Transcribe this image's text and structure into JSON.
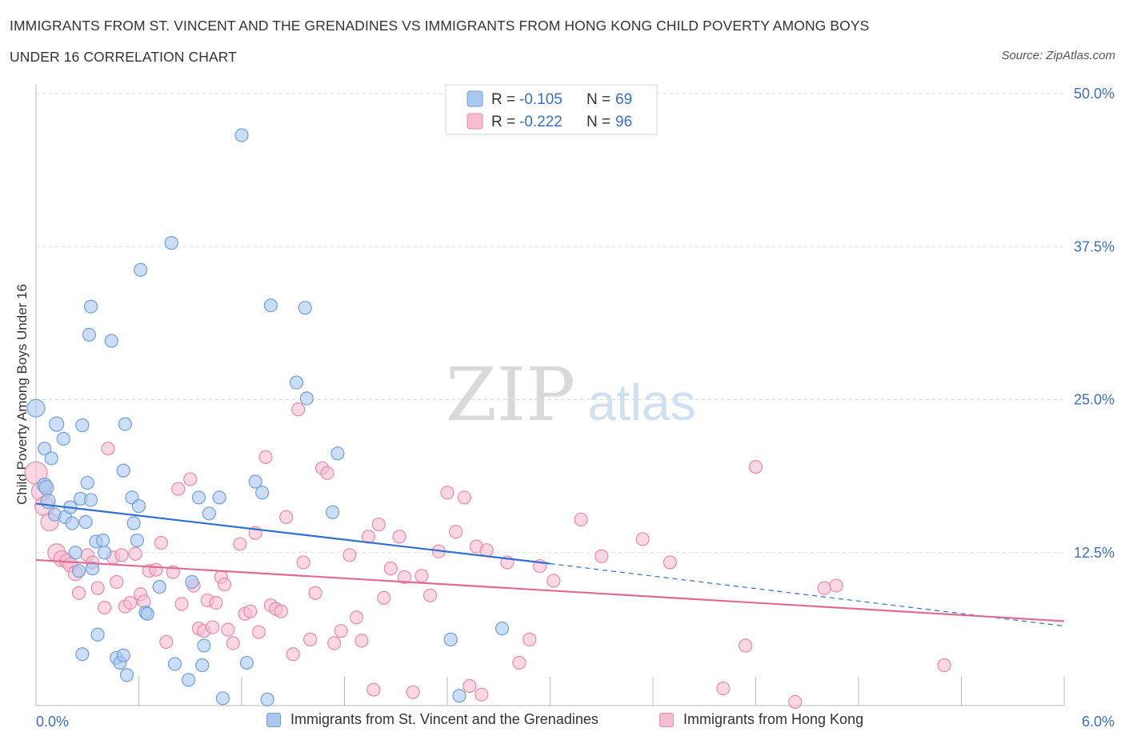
{
  "title_line1": "IMMIGRANTS FROM ST. VINCENT AND THE GRENADINES VS IMMIGRANTS FROM HONG KONG CHILD POVERTY AMONG BOYS",
  "title_line2": "UNDER 16 CORRELATION CHART",
  "source": "Source: ZipAtlas.com",
  "watermark": {
    "zip": "ZIP",
    "atlas": "atlas"
  },
  "colors": {
    "blue_fill": "#a9c8ef",
    "blue_stroke": "#6f9fdc",
    "blue_line": "#2e6fcf",
    "pink_fill": "#f6bcd0",
    "pink_stroke": "#e88aa9",
    "pink_line": "#e0699a",
    "axis_label": "#3a6fc4",
    "grid": "#dddddd"
  },
  "legend": {
    "rows": [
      {
        "r_label": "R = ",
        "r_value": "-0.105",
        "n_label": "N = ",
        "n_value": "69"
      },
      {
        "r_label": "R = ",
        "r_value": "-0.222",
        "n_label": "N = ",
        "n_value": "96"
      }
    ]
  },
  "chart_data": {
    "type": "scatter",
    "title": "IMMIGRANTS FROM ST. VINCENT AND THE GRENADINES VS IMMIGRANTS FROM HONG KONG CHILD POVERTY AMONG BOYS UNDER 16 CORRELATION CHART",
    "xlabel": "",
    "ylabel": "Child Poverty Among Boys Under 16",
    "xlim": [
      0,
      6
    ],
    "ylim": [
      0,
      50
    ],
    "x_tick_labels": [
      "0.0%",
      "6.0%"
    ],
    "y_ticks": [
      12.5,
      25,
      37.5,
      50
    ],
    "y_tick_labels": [
      "12.5%",
      "25.0%",
      "37.5%",
      "50.0%"
    ],
    "grid": true,
    "legend_position": "top-center",
    "series": [
      {
        "name": "Immigrants from St. Vincent and the Grenadines",
        "r": -0.105,
        "n": 69,
        "trend": {
          "x0": 0.0,
          "y0": 16.5,
          "x1": 3.0,
          "y1": 11.6,
          "dashed_to_x": 6.0,
          "dashed_to_y": 6.5
        },
        "points": [
          [
            0.0,
            24.3,
            11
          ],
          [
            0.05,
            18.0,
            9
          ],
          [
            0.06,
            17.8,
            9
          ],
          [
            0.05,
            21.0,
            8
          ],
          [
            0.07,
            16.7,
            9
          ],
          [
            0.09,
            20.2,
            8
          ],
          [
            0.11,
            15.6,
            8
          ],
          [
            0.12,
            23.0,
            9
          ],
          [
            0.16,
            21.8,
            8
          ],
          [
            0.17,
            15.4,
            8
          ],
          [
            0.2,
            16.2,
            8
          ],
          [
            0.21,
            14.9,
            8
          ],
          [
            0.23,
            12.5,
            8
          ],
          [
            0.25,
            11.0,
            8
          ],
          [
            0.26,
            16.9,
            8
          ],
          [
            0.27,
            22.9,
            8
          ],
          [
            0.27,
            4.2,
            8
          ],
          [
            0.29,
            15.0,
            8
          ],
          [
            0.3,
            18.2,
            8
          ],
          [
            0.31,
            30.3,
            8
          ],
          [
            0.32,
            16.8,
            8
          ],
          [
            0.32,
            32.6,
            8
          ],
          [
            0.33,
            11.2,
            8
          ],
          [
            0.35,
            13.4,
            8
          ],
          [
            0.36,
            5.8,
            8
          ],
          [
            0.39,
            13.5,
            8
          ],
          [
            0.4,
            12.5,
            8
          ],
          [
            0.44,
            29.8,
            8
          ],
          [
            0.47,
            3.9,
            8
          ],
          [
            0.49,
            3.5,
            8
          ],
          [
            0.51,
            4.1,
            8
          ],
          [
            0.51,
            19.2,
            8
          ],
          [
            0.52,
            23.0,
            8
          ],
          [
            0.53,
            2.5,
            8
          ],
          [
            0.56,
            17.0,
            8
          ],
          [
            0.57,
            14.9,
            8
          ],
          [
            0.59,
            13.5,
            8
          ],
          [
            0.6,
            16.3,
            8
          ],
          [
            0.61,
            35.6,
            8
          ],
          [
            0.64,
            7.6,
            8
          ],
          [
            0.65,
            7.5,
            8
          ],
          [
            0.72,
            9.7,
            8
          ],
          [
            0.79,
            37.8,
            8
          ],
          [
            0.81,
            3.4,
            8
          ],
          [
            0.89,
            2.1,
            8
          ],
          [
            0.91,
            10.1,
            8
          ],
          [
            0.95,
            17.0,
            8
          ],
          [
            0.97,
            3.3,
            8
          ],
          [
            0.98,
            4.9,
            8
          ],
          [
            1.01,
            15.7,
            8
          ],
          [
            1.07,
            17.0,
            8
          ],
          [
            1.09,
            0.6,
            8
          ],
          [
            1.2,
            46.6,
            8
          ],
          [
            1.23,
            3.5,
            8
          ],
          [
            1.28,
            18.3,
            8
          ],
          [
            1.32,
            17.4,
            8
          ],
          [
            1.35,
            0.5,
            8
          ],
          [
            1.37,
            32.7,
            8
          ],
          [
            1.52,
            26.4,
            8
          ],
          [
            1.57,
            32.5,
            8
          ],
          [
            1.58,
            25.1,
            8
          ],
          [
            1.73,
            15.8,
            8
          ],
          [
            1.76,
            20.6,
            8
          ],
          [
            2.42,
            5.4,
            8
          ],
          [
            2.47,
            0.8,
            8
          ],
          [
            2.72,
            6.3,
            8
          ]
        ]
      },
      {
        "name": "Immigrants from Hong Kong",
        "r": -0.222,
        "n": 96,
        "trend": {
          "x0": 0.0,
          "y0": 11.9,
          "x1": 6.0,
          "y1": 6.9
        },
        "points": [
          [
            0.0,
            19.0,
            14
          ],
          [
            0.03,
            17.5,
            12
          ],
          [
            0.05,
            16.3,
            12
          ],
          [
            0.08,
            15.0,
            11
          ],
          [
            0.12,
            12.5,
            11
          ],
          [
            0.15,
            12.0,
            10
          ],
          [
            0.18,
            11.8,
            9
          ],
          [
            0.2,
            11.5,
            9
          ],
          [
            0.23,
            10.8,
            9
          ],
          [
            0.25,
            9.2,
            8
          ],
          [
            0.3,
            12.3,
            8
          ],
          [
            0.33,
            11.7,
            8
          ],
          [
            0.36,
            9.6,
            8
          ],
          [
            0.4,
            8.0,
            8
          ],
          [
            0.42,
            21.0,
            8
          ],
          [
            0.45,
            12.1,
            8
          ],
          [
            0.47,
            10.1,
            8
          ],
          [
            0.5,
            12.3,
            8
          ],
          [
            0.52,
            8.1,
            8
          ],
          [
            0.55,
            8.4,
            8
          ],
          [
            0.58,
            12.4,
            8
          ],
          [
            0.61,
            9.1,
            8
          ],
          [
            0.63,
            8.5,
            8
          ],
          [
            0.66,
            11.0,
            8
          ],
          [
            0.7,
            11.1,
            8
          ],
          [
            0.73,
            13.3,
            8
          ],
          [
            0.76,
            5.2,
            8
          ],
          [
            0.8,
            10.9,
            8
          ],
          [
            0.83,
            17.7,
            8
          ],
          [
            0.85,
            8.3,
            8
          ],
          [
            0.9,
            18.5,
            8
          ],
          [
            0.92,
            9.8,
            8
          ],
          [
            0.95,
            6.3,
            8
          ],
          [
            0.98,
            6.1,
            8
          ],
          [
            1.0,
            8.6,
            8
          ],
          [
            1.03,
            6.4,
            8
          ],
          [
            1.05,
            8.4,
            8
          ],
          [
            1.08,
            10.5,
            8
          ],
          [
            1.1,
            9.9,
            8
          ],
          [
            1.12,
            6.2,
            8
          ],
          [
            1.15,
            5.1,
            8
          ],
          [
            1.19,
            13.2,
            8
          ],
          [
            1.22,
            7.5,
            8
          ],
          [
            1.25,
            7.7,
            8
          ],
          [
            1.28,
            14.1,
            8
          ],
          [
            1.3,
            6.0,
            8
          ],
          [
            1.34,
            20.3,
            8
          ],
          [
            1.37,
            8.2,
            8
          ],
          [
            1.4,
            7.9,
            8
          ],
          [
            1.43,
            7.7,
            8
          ],
          [
            1.46,
            15.4,
            8
          ],
          [
            1.5,
            4.2,
            8
          ],
          [
            1.53,
            24.2,
            8
          ],
          [
            1.56,
            11.7,
            8
          ],
          [
            1.6,
            5.4,
            8
          ],
          [
            1.63,
            9.2,
            8
          ],
          [
            1.67,
            19.4,
            8
          ],
          [
            1.7,
            19.0,
            8
          ],
          [
            1.74,
            5.1,
            8
          ],
          [
            1.78,
            6.1,
            8
          ],
          [
            1.83,
            12.3,
            8
          ],
          [
            1.87,
            7.2,
            8
          ],
          [
            1.9,
            5.3,
            8
          ],
          [
            1.94,
            13.8,
            8
          ],
          [
            1.97,
            1.3,
            8
          ],
          [
            2.0,
            14.8,
            8
          ],
          [
            2.03,
            8.8,
            8
          ],
          [
            2.07,
            11.2,
            8
          ],
          [
            2.12,
            13.8,
            8
          ],
          [
            2.15,
            10.5,
            8
          ],
          [
            2.2,
            1.1,
            8
          ],
          [
            2.25,
            10.6,
            8
          ],
          [
            2.3,
            9.0,
            8
          ],
          [
            2.35,
            12.6,
            8
          ],
          [
            2.4,
            17.4,
            8
          ],
          [
            2.45,
            14.2,
            8
          ],
          [
            2.5,
            17.0,
            8
          ],
          [
            2.53,
            1.6,
            8
          ],
          [
            2.57,
            13.0,
            8
          ],
          [
            2.6,
            0.9,
            8
          ],
          [
            2.63,
            12.7,
            8
          ],
          [
            2.75,
            11.7,
            8
          ],
          [
            2.82,
            3.5,
            8
          ],
          [
            2.88,
            5.4,
            8
          ],
          [
            2.94,
            11.4,
            8
          ],
          [
            3.02,
            10.2,
            8
          ],
          [
            3.18,
            15.2,
            8
          ],
          [
            3.3,
            12.2,
            8
          ],
          [
            3.54,
            13.6,
            8
          ],
          [
            3.7,
            11.7,
            8
          ],
          [
            4.01,
            1.4,
            8
          ],
          [
            4.14,
            4.9,
            8
          ],
          [
            4.2,
            19.5,
            8
          ],
          [
            4.43,
            0.3,
            8
          ],
          [
            4.6,
            9.6,
            8
          ],
          [
            4.67,
            9.8,
            8
          ],
          [
            5.3,
            3.3,
            8
          ]
        ]
      }
    ]
  }
}
